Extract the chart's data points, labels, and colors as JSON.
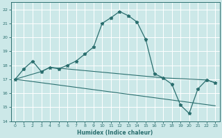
{
  "title": "",
  "xlabel": "Humidex (Indice chaleur)",
  "ylabel": "",
  "bg_color": "#cce8e8",
  "grid_color": "#ffffff",
  "line_color": "#2a6e6e",
  "xlim": [
    -0.5,
    23.5
  ],
  "ylim": [
    14,
    22.5
  ],
  "xticks": [
    0,
    1,
    2,
    3,
    4,
    5,
    6,
    7,
    8,
    9,
    10,
    11,
    12,
    13,
    14,
    15,
    16,
    17,
    18,
    19,
    20,
    21,
    22,
    23
  ],
  "yticks": [
    14,
    15,
    16,
    17,
    18,
    19,
    20,
    21,
    22
  ],
  "curve1_x": [
    0,
    1,
    2,
    3,
    4,
    5,
    6,
    7,
    8,
    9,
    10,
    11,
    12,
    13,
    14,
    15,
    16,
    17,
    18,
    19,
    20,
    21,
    22,
    23
  ],
  "curve1_y": [
    17.0,
    17.75,
    18.3,
    17.55,
    17.85,
    17.75,
    18.0,
    18.3,
    18.8,
    19.3,
    21.0,
    21.4,
    21.85,
    21.55,
    21.1,
    19.85,
    17.4,
    17.1,
    16.65,
    15.15,
    14.55,
    16.3,
    16.95,
    16.75
  ],
  "curve2_x": [
    0,
    3,
    4,
    17,
    22,
    23
  ],
  "curve2_y": [
    17.0,
    17.55,
    17.85,
    17.1,
    16.95,
    16.75
  ],
  "curve3_x": [
    0,
    23
  ],
  "curve3_y": [
    17.0,
    15.1
  ]
}
